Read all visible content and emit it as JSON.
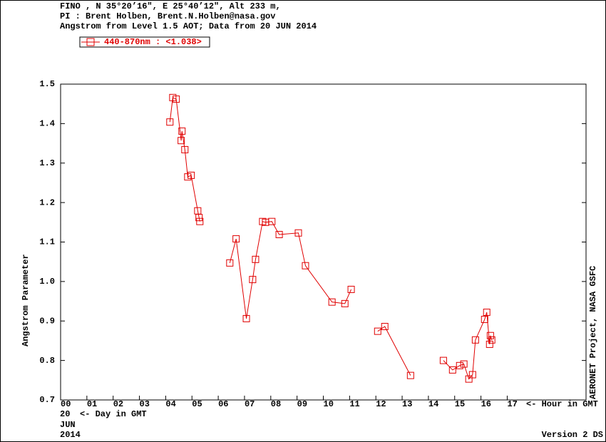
{
  "chart_data": {
    "type": "line",
    "title_lines": [
      "FINO , N 35°20’16\", E 25°40’12\", Alt 233 m,",
      "PI : Brent Holben, Brent.N.Holben@nasa.gov",
      "Angstrom from Level 1.5 AOT; Data from 20 JUN 2014"
    ],
    "y_label": "Angstrom Parameter",
    "x_label": "<- Hour in GMT",
    "day": "20",
    "day_label": "<- Day in GMT",
    "month": "JUN",
    "year": "2014",
    "side_note": "AERONET Project, NASA GSFC",
    "version": "Version 2 DS",
    "series": [
      {
        "name": "440-870nm  : <1.038>",
        "color": "#e00000",
        "x": [
          4.16,
          4.27,
          4.4,
          4.59,
          4.62,
          4.73,
          4.84,
          4.97,
          5.22,
          5.27,
          5.3,
          null,
          6.44,
          6.68,
          7.07,
          7.31,
          7.42,
          7.69,
          7.8,
          8.04,
          8.32,
          9.05,
          9.32,
          10.33,
          10.82,
          11.06,
          null,
          12.07,
          12.34,
          13.32,
          null,
          14.57,
          14.92,
          15.19,
          15.35,
          15.54,
          15.68,
          15.79,
          16.14,
          16.22,
          16.33,
          16.36,
          16.41
        ],
        "values": [
          1.404,
          1.466,
          1.462,
          1.357,
          1.381,
          1.334,
          1.265,
          1.269,
          1.179,
          1.162,
          1.152,
          null,
          1.047,
          1.108,
          0.906,
          1.005,
          1.056,
          1.152,
          1.15,
          1.152,
          1.119,
          1.123,
          1.04,
          0.948,
          0.944,
          0.98,
          null,
          0.874,
          0.886,
          0.762,
          null,
          0.8,
          0.776,
          0.787,
          0.791,
          0.753,
          0.764,
          0.852,
          0.904,
          0.922,
          0.841,
          0.863,
          0.852
        ]
      }
    ],
    "xlim": [
      0,
      20
    ],
    "xticks": [
      {
        "value": 0,
        "label": "00"
      },
      {
        "value": 1,
        "label": "01"
      },
      {
        "value": 2,
        "label": "02"
      },
      {
        "value": 3,
        "label": "03"
      },
      {
        "value": 4,
        "label": "04"
      },
      {
        "value": 5,
        "label": "05"
      },
      {
        "value": 6,
        "label": "06"
      },
      {
        "value": 7,
        "label": "07"
      },
      {
        "value": 8,
        "label": "08"
      },
      {
        "value": 9,
        "label": "09"
      },
      10,
      11,
      12,
      13,
      14,
      15,
      16,
      17
    ],
    "ylim": [
      0.7,
      1.5
    ],
    "yticks": [
      0.7,
      0.8,
      0.9,
      {
        "value": 1,
        "label": "1.0"
      },
      1.1,
      1.2,
      1.3,
      1.4,
      1.5
    ]
  }
}
